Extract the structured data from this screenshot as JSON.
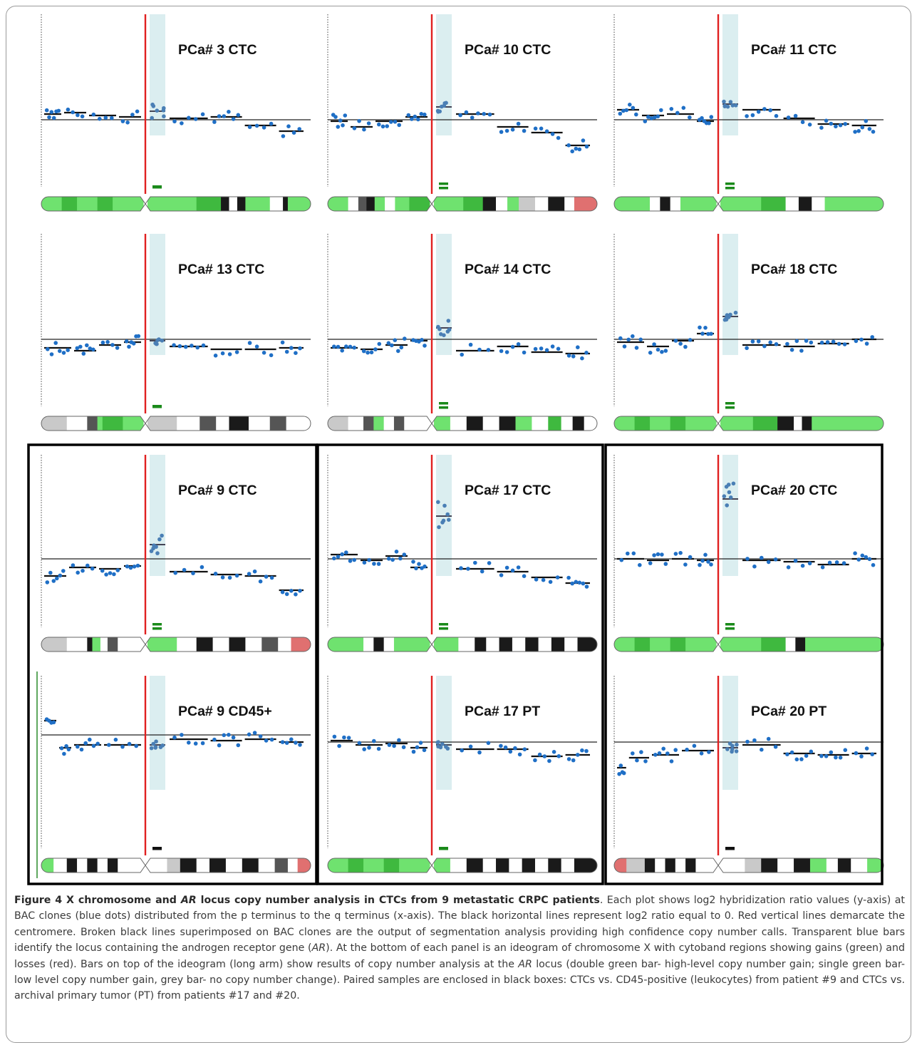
{
  "figure": {
    "panels": [
      {
        "title": "PCa# 3 CTC",
        "ar_call": "single-gain"
      },
      {
        "title": "PCa# 10 CTC",
        "ar_call": "double-gain"
      },
      {
        "title": "PCa# 11 CTC",
        "ar_call": "double-gain"
      },
      {
        "title": "PCa# 13 CTC",
        "ar_call": "single-gain"
      },
      {
        "title": "PCa# 14 CTC",
        "ar_call": "double-gain"
      },
      {
        "title": "PCa# 18 CTC",
        "ar_call": "double-gain"
      },
      {
        "title": "PCa# 9 CTC",
        "ar_call": "double-gain"
      },
      {
        "title": "PCa# 17 CTC",
        "ar_call": "double-gain"
      },
      {
        "title": "PCa# 20 CTC",
        "ar_call": "double-gain"
      },
      {
        "title": "PCa# 9 CD45+",
        "ar_call": "no-change"
      },
      {
        "title": "PCa# 17 PT",
        "ar_call": "single-gain"
      },
      {
        "title": "PCa# 20 PT",
        "ar_call": "no-change"
      }
    ],
    "colors": {
      "centromere": "#e02020",
      "bac_clone": "#1f6fc6",
      "segment": "#111111",
      "ar_locus": "#dbeef0",
      "gain": "#66e066",
      "loss": "#e06c6c",
      "gain_bar": "#1a8a1a",
      "no_change_bar": "#111111"
    }
  },
  "caption": {
    "label": "Figure 4",
    "title_part1": "X chromosome and",
    "title_gene": "AR",
    "title_part2": "locus copy number analysis in CTCs from 9 metastatic CRPC patients",
    "body_part1": ". Each plot shows log2 hybridization ratio values (y-axis) at BAC clones (blue dots) distributed from the p terminus to the q terminus (x-axis). The black horizontal lines represent log2 ratio equal to 0. Red vertical lines demarcate the centromere. Broken black lines superimposed on BAC clones are the output of segmentation analysis providing high confidence copy number calls. Transparent blue bars identify the locus containing the androgen receptor gene (",
    "gene1": "AR",
    "body_part2": "). At the bottom of each panel is an ideogram of chromosome X with cytoband regions showing gains (green) and losses (red). Bars on top of the ideogram (long arm) show results of copy number analysis at the",
    "gene2": "AR",
    "body_part3": "locus (double green bar- high-level copy number gain; single green bar- low level copy number gain, grey bar- no copy number change). Paired samples are enclosed in black boxes: CTCs vs. CD45-positive (leukocytes) from patient #9 and CTCs vs. archival primary tumor (PT) from patients #17 and #20."
  }
}
